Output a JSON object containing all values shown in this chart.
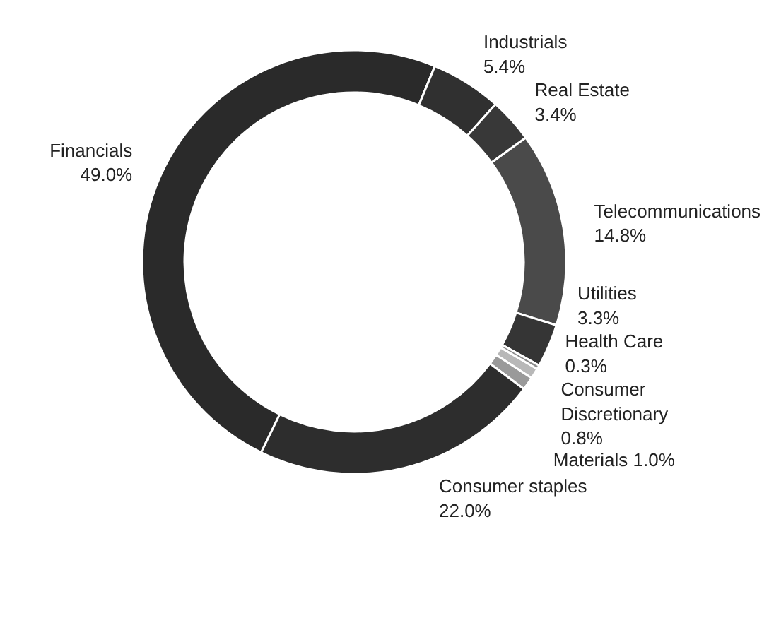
{
  "chart_data": {
    "type": "donut",
    "categories": [
      "Financials",
      "Industrials",
      "Real Estate",
      "Telecommunications",
      "Utilities",
      "Health Care",
      "Consumer Discretionary",
      "Materials",
      "Consumer staples"
    ],
    "values": [
      49.0,
      5.4,
      3.4,
      14.8,
      3.3,
      0.3,
      0.8,
      1.0,
      22.0
    ],
    "value_labels": [
      "49.0%",
      "5.4%",
      "3.4%",
      "14.8%",
      "3.3%",
      "0.3%",
      "0.8%",
      "1.0%",
      "22.0%"
    ],
    "colors": [
      "#2a2a2a",
      "#303030",
      "#383838",
      "#4a4a4a",
      "#353535",
      "#8c8c8c",
      "#b8b8b8",
      "#9a9a9a",
      "#2d2d2d"
    ],
    "legend": false
  }
}
